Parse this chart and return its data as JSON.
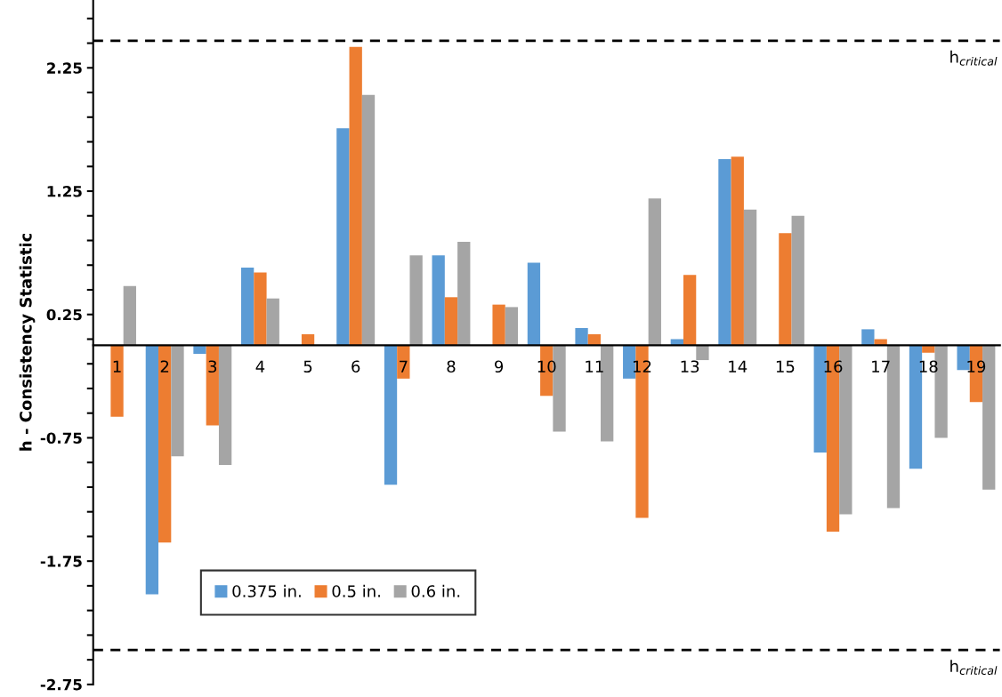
{
  "chart_data": {
    "type": "bar",
    "ylabel": "h - Consistency Statistic",
    "categories": [
      "1",
      "2",
      "3",
      "4",
      "5",
      "6",
      "7",
      "8",
      "9",
      "10",
      "11",
      "12",
      "13",
      "14",
      "15",
      "16",
      "17",
      "18",
      "19"
    ],
    "series": [
      {
        "name": "0.375 in.",
        "color": "#5b9bd5",
        "values": [
          null,
          -2.02,
          -0.07,
          0.63,
          null,
          1.76,
          -1.13,
          0.73,
          null,
          0.67,
          0.14,
          -0.27,
          0.05,
          1.51,
          null,
          -0.87,
          0.13,
          -1.0,
          -0.2
        ]
      },
      {
        "name": "0.5 in.",
        "color": "#ed7d31",
        "values": [
          -0.58,
          -1.6,
          -0.65,
          0.59,
          0.09,
          2.42,
          -0.27,
          0.39,
          0.33,
          -0.41,
          0.09,
          -1.4,
          0.57,
          1.53,
          0.91,
          -1.51,
          0.05,
          -0.06,
          -0.46
        ]
      },
      {
        "name": "0.6 in.",
        "color": "#a5a5a5",
        "values": [
          0.48,
          -0.9,
          -0.97,
          0.38,
          null,
          2.03,
          0.73,
          0.84,
          0.31,
          -0.7,
          -0.78,
          1.19,
          -0.12,
          1.1,
          1.05,
          -1.37,
          -1.32,
          -0.75,
          -1.17
        ]
      }
    ],
    "ylim": [
      -2.75,
      2.8
    ],
    "yticks": [
      -2.75,
      {
        "value": -2.55,
        "label": null
      },
      {
        "value": -2.35,
        "label": null
      },
      {
        "value": -2.15,
        "label": null
      },
      {
        "value": -1.95,
        "label": null
      },
      -1.75,
      {
        "value": -1.55,
        "label": null
      },
      {
        "value": -1.35,
        "label": null
      },
      {
        "value": -1.15,
        "label": null
      },
      {
        "value": -0.95,
        "label": null
      },
      -0.75,
      {
        "value": -0.55,
        "label": null
      },
      {
        "value": -0.35,
        "label": null
      },
      {
        "value": -0.15,
        "label": null
      },
      {
        "value": 0.05,
        "label": null
      },
      0.25,
      {
        "value": 0.45,
        "label": null
      },
      {
        "value": 0.65,
        "label": null
      },
      {
        "value": 0.85,
        "label": null
      },
      {
        "value": 1.05,
        "label": null
      },
      1.25,
      {
        "value": 1.45,
        "label": null
      },
      {
        "value": 1.65,
        "label": null
      },
      {
        "value": 1.85,
        "label": null
      },
      {
        "value": 2.05,
        "label": null
      },
      2.25,
      {
        "value": 2.45,
        "label": null
      },
      {
        "value": 2.65,
        "label": null
      }
    ],
    "ref_lines": [
      {
        "axis": "y",
        "value": 2.47,
        "label": "h$_{critical}$",
        "color": "#000000",
        "line_style": "dashed"
      },
      {
        "axis": "y",
        "value": -2.47,
        "label": "h$_{critical}$",
        "color": "#000000",
        "line_style": "dashed"
      }
    ],
    "grid": false,
    "legend": "bottom left"
  }
}
